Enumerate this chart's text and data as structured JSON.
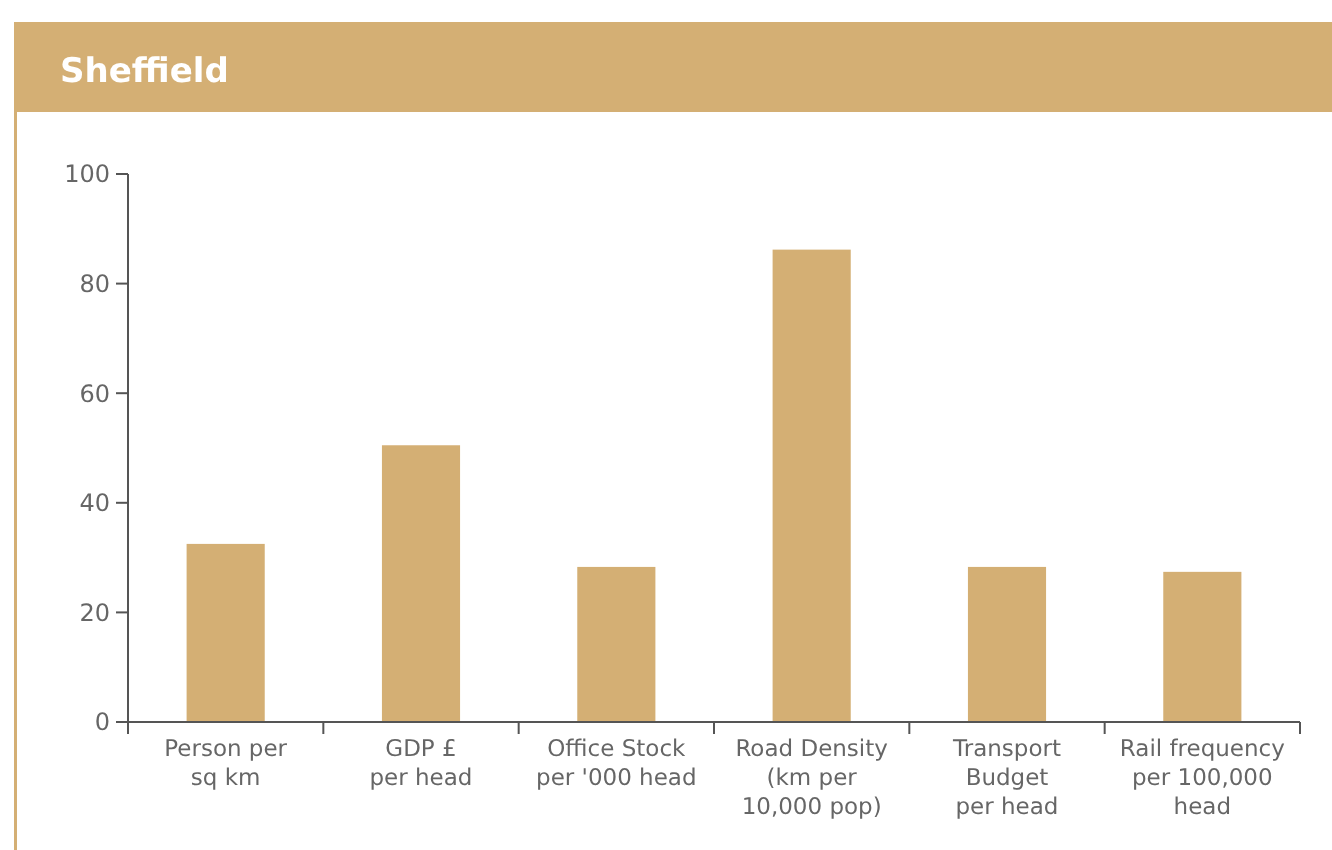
{
  "chart_data": {
    "type": "bar",
    "title": "Sheffield",
    "categories": [
      "Person per\nsq km",
      "GDP £\nper head",
      "Office Stock\nper '000 head",
      "Road Density\n(km per\n10,000 pop)",
      "Transport\nBudget\nper head",
      "Rail frequency\nper 100,000\nhead"
    ],
    "values": [
      32.5,
      50.5,
      28.3,
      86.2,
      28.3,
      27.4
    ],
    "color": "#d4af74",
    "ylim": [
      0,
      100
    ],
    "yticks": [
      0,
      20,
      40,
      60,
      80,
      100
    ]
  }
}
